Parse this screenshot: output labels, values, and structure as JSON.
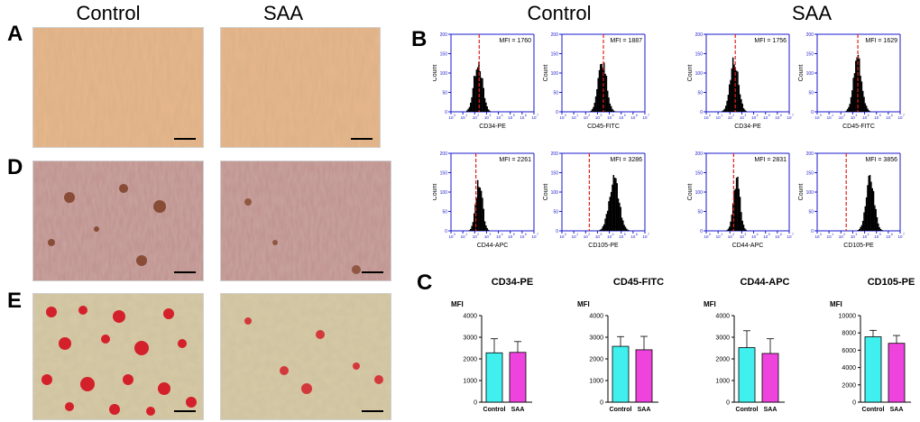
{
  "headers": {
    "micro_control": "Control",
    "micro_saa": "SAA",
    "flow_control": "Control",
    "flow_saa": "SAA"
  },
  "panel_labels": {
    "a": "A",
    "b": "B",
    "c": "C",
    "d": "D",
    "e": "E"
  },
  "colors": {
    "phase_bg": "#e8b88c",
    "alizarin_bg": "#c9a5a0",
    "oil_bg": "#d8caa6",
    "histogram": "#000000",
    "mfi_line": "#e0201a",
    "flow_axis": "#1a1acc",
    "bar_control": "#40f0ee",
    "bar_saa": "#ee44dd"
  },
  "flow": {
    "axis_y_label": "Count",
    "y_ticks": [
      "0",
      "50",
      "100",
      "150",
      "200"
    ],
    "x_ticks": [
      "10",
      "0",
      "10",
      "1",
      "10",
      "2",
      "10",
      "3",
      "10",
      "4",
      "10",
      "5",
      "10",
      "6",
      "10",
      "7"
    ],
    "plots": [
      {
        "mfi_text": "MFI = 1760",
        "xlabel": "CD34-PE",
        "peak": 0.32,
        "spread": 0.05,
        "line": 0.34
      },
      {
        "mfi_text": "MFI = 1887",
        "xlabel": "CD45-FITC",
        "peak": 0.48,
        "spread": 0.05,
        "line": 0.5
      },
      {
        "mfi_text": "MFI = 1756",
        "xlabel": "CD34-PE",
        "peak": 0.33,
        "spread": 0.05,
        "line": 0.35
      },
      {
        "mfi_text": "MFI = 1629",
        "xlabel": "CD45-FITC",
        "peak": 0.48,
        "spread": 0.05,
        "line": 0.49
      },
      {
        "mfi_text": "MFI = 2261",
        "xlabel": "CD44-APC",
        "peak": 0.33,
        "spread": 0.04,
        "line": 0.3
      },
      {
        "mfi_text": "MFI = 3286",
        "xlabel": "CD105-PE",
        "peak": 0.62,
        "spread": 0.06,
        "line": 0.33
      },
      {
        "mfi_text": "MFI = 2831",
        "xlabel": "CD44-APC",
        "peak": 0.36,
        "spread": 0.04,
        "line": 0.33
      },
      {
        "mfi_text": "MFI = 3856",
        "xlabel": "CD105-PE",
        "peak": 0.63,
        "spread": 0.05,
        "line": 0.35
      }
    ]
  },
  "chart_data": [
    {
      "type": "bar",
      "title": "CD34-PE",
      "ylabel": "MFI",
      "categories": [
        "Control",
        "SAA"
      ],
      "values": [
        2280,
        2300
      ],
      "errors": [
        650,
        500
      ],
      "ylim": [
        0,
        4000
      ],
      "yticks": [
        "0",
        "1000",
        "2000",
        "3000",
        "4000"
      ]
    },
    {
      "type": "bar",
      "title": "CD45-FITC",
      "ylabel": "MFI",
      "categories": [
        "Control",
        "SAA"
      ],
      "values": [
        2580,
        2420
      ],
      "errors": [
        450,
        620
      ],
      "ylim": [
        0,
        4000
      ],
      "yticks": [
        "0",
        "1000",
        "2000",
        "3000",
        "4000"
      ]
    },
    {
      "type": "bar",
      "title": "CD44-APC",
      "ylabel": "MFI",
      "categories": [
        "Control",
        "SAA"
      ],
      "values": [
        2520,
        2250
      ],
      "errors": [
        780,
        680
      ],
      "ylim": [
        0,
        4000
      ],
      "yticks": [
        "0",
        "1000",
        "2000",
        "3000",
        "4000"
      ]
    },
    {
      "type": "bar",
      "title": "CD105-PE",
      "ylabel": "MFI",
      "categories": [
        "Control",
        "SAA"
      ],
      "values": [
        7550,
        6800
      ],
      "errors": [
        750,
        900
      ],
      "ylim": [
        0,
        10000
      ],
      "yticks": [
        "0",
        "2000",
        "4000",
        "6000",
        "8000",
        "10000"
      ]
    }
  ]
}
